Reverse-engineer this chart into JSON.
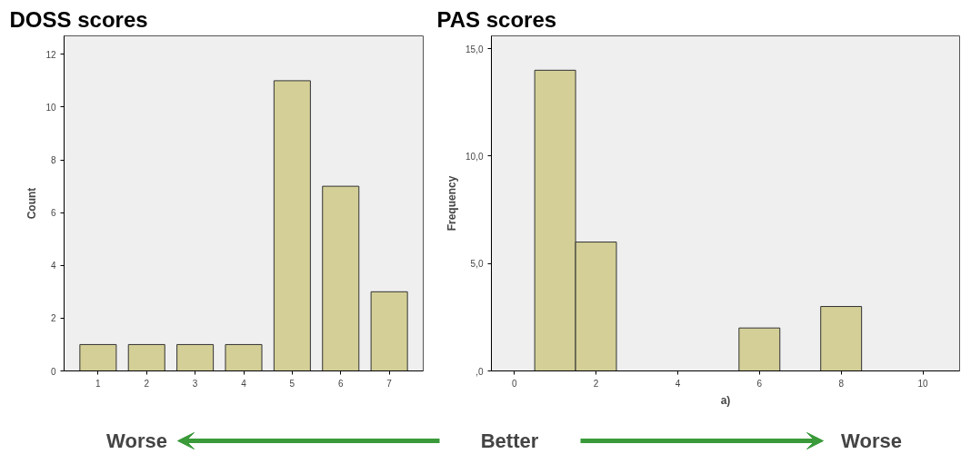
{
  "chart_data": [
    {
      "type": "bar",
      "title": "DOSS scores",
      "ylabel": "Count",
      "categories": [
        "1",
        "2",
        "3",
        "4",
        "5",
        "6",
        "7"
      ],
      "values": [
        1,
        1,
        1,
        1,
        11,
        7,
        3
      ],
      "color": "#d3cf97",
      "ylim": [
        0,
        12.7
      ],
      "yticks": [
        0,
        2,
        4,
        6,
        8,
        10,
        12
      ],
      "grid": false
    },
    {
      "type": "histogram",
      "title": "PAS scores",
      "ylabel": "Frequency",
      "xlabel": "a)",
      "bins": [
        0.5,
        1.5,
        2.5,
        3.5,
        4.5,
        5.5,
        6.5,
        7.5,
        8.5
      ],
      "values": [
        14,
        6,
        0,
        0,
        0,
        2,
        0,
        3
      ],
      "color": "#d3cf97",
      "xlim": [
        -0.56,
        10.9
      ],
      "xticks": [
        0,
        2,
        4,
        6,
        8,
        10
      ],
      "ylim": [
        0,
        15.6
      ],
      "yticks": [
        {
          "value": 0,
          "label": ",0"
        },
        {
          "value": 5,
          "label": "5,0"
        },
        {
          "value": 10,
          "label": "10,0"
        },
        {
          "value": 15,
          "label": "15,0"
        }
      ],
      "grid": false,
      "annotations": [
        "Worse",
        "Better",
        "Worse"
      ]
    }
  ]
}
